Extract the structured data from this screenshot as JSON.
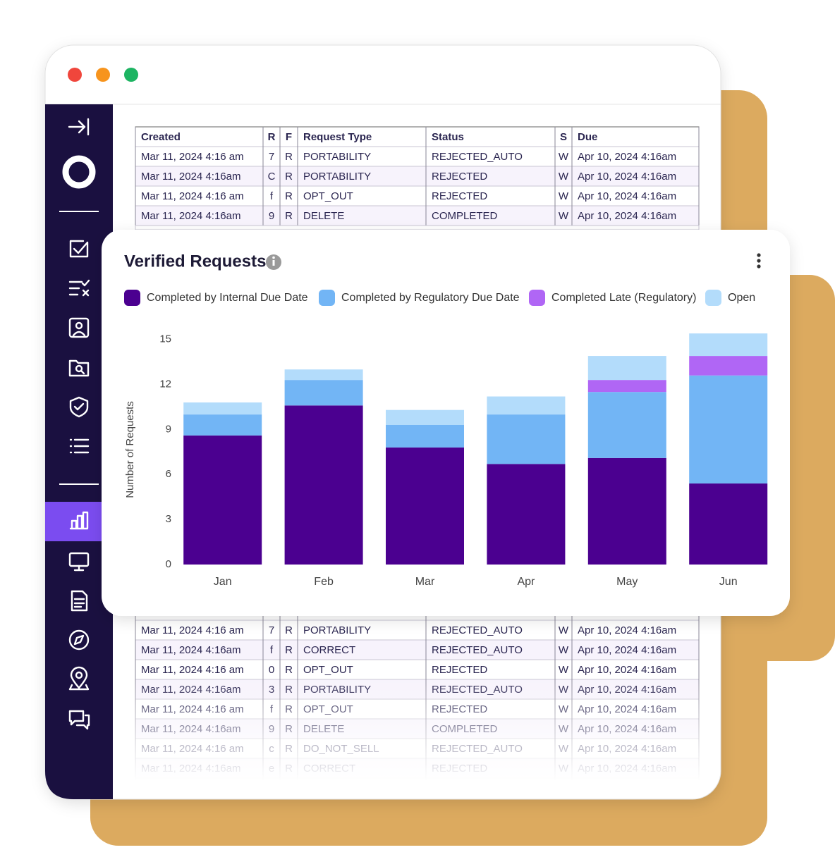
{
  "table": {
    "columns": [
      "Created",
      "R",
      "F",
      "Request Type",
      "Status",
      "S",
      "Due"
    ],
    "rows": [
      [
        "Mar 11, 2024 4:16 am",
        "7",
        "R",
        "PORTABILITY",
        "REJECTED_AUTO",
        "W",
        "Apr 10, 2024 4:16am"
      ],
      [
        "Mar 11, 2024 4:16am",
        "C",
        "R",
        "PORTABILITY",
        "REJECTED",
        "W",
        "Apr 10, 2024 4:16am"
      ],
      [
        "Mar 11, 2024 4:16 am",
        "f",
        "R",
        "OPT_OUT",
        "REJECTED",
        "W",
        "Apr 10, 2024 4:16am"
      ],
      [
        "Mar 11, 2024 4:16am",
        "9",
        "R",
        "DELETE",
        "COMPLETED",
        "W",
        "Apr 10, 2024 4:16am"
      ],
      [
        "Mar 11, 2024 4:16 am",
        "7",
        "R",
        "PORTABILITY",
        "REJECTED_AUTO",
        "W",
        "Apr 10, 2024 4:16am"
      ],
      [
        "Mar 11, 2024 4:16am",
        "f",
        "R",
        "CORRECT",
        "REJECTED_AUTO",
        "W",
        "Apr 10, 2024 4:16am"
      ],
      [
        "Mar 11, 2024 4:16 am",
        "0",
        "R",
        "OPT_OUT",
        "REJECTED",
        "W",
        "Apr 10, 2024 4:16am"
      ],
      [
        "Mar 11, 2024 4:16am",
        "3",
        "R",
        "PORTABILITY",
        "REJECTED_AUTO",
        "W",
        "Apr 10, 2024 4:16am"
      ],
      [
        "Mar 11, 2024 4:16 am",
        "f",
        "R",
        "OPT_OUT",
        "REJECTED",
        "W",
        "Apr 10, 2024 4:16am"
      ],
      [
        "Mar 11, 2024 4:16am",
        "9",
        "R",
        "DELETE",
        "COMPLETED",
        "W",
        "Apr 10, 2024 4:16am"
      ],
      [
        "Mar 11, 2024 4:16 am",
        "c",
        "R",
        "DO_NOT_SELL",
        "REJECTED_AUTO",
        "W",
        "Apr 10, 2024 4:16am"
      ],
      [
        "Mar 11, 2024 4:16am",
        "e",
        "R",
        "CORRECT",
        "REJECTED",
        "W",
        "Apr 10, 2024 4:16am"
      ]
    ]
  },
  "chart_data": {
    "type": "bar",
    "stacked": true,
    "title": "Verified Requests",
    "y_label": "Number of Requests",
    "categories": [
      "Jan",
      "Feb",
      "Mar",
      "Apr",
      "May",
      "Jun"
    ],
    "series": [
      {
        "name": "Completed by Internal Due Date",
        "color": "#4b0090",
        "values": [
          8.6,
          10.6,
          7.8,
          6.7,
          7.1,
          5.4
        ]
      },
      {
        "name": "Completed by Regulatory Due Date",
        "color": "#72b5f5",
        "values": [
          1.4,
          1.7,
          1.5,
          3.3,
          4.4,
          7.2
        ]
      },
      {
        "name": "Completed Late (Regulatory)",
        "color": "#b066f5",
        "values": [
          0,
          0,
          0,
          0,
          0.8,
          1.3
        ]
      },
      {
        "name": "Open",
        "color": "#b3dcfb",
        "values": [
          0.8,
          0.7,
          1.0,
          1.2,
          1.6,
          1.5
        ]
      }
    ],
    "ylim": [
      0,
      15.5
    ],
    "yticks": [
      0,
      3,
      6,
      9,
      12,
      15
    ],
    "grid": false,
    "legend": "top"
  }
}
